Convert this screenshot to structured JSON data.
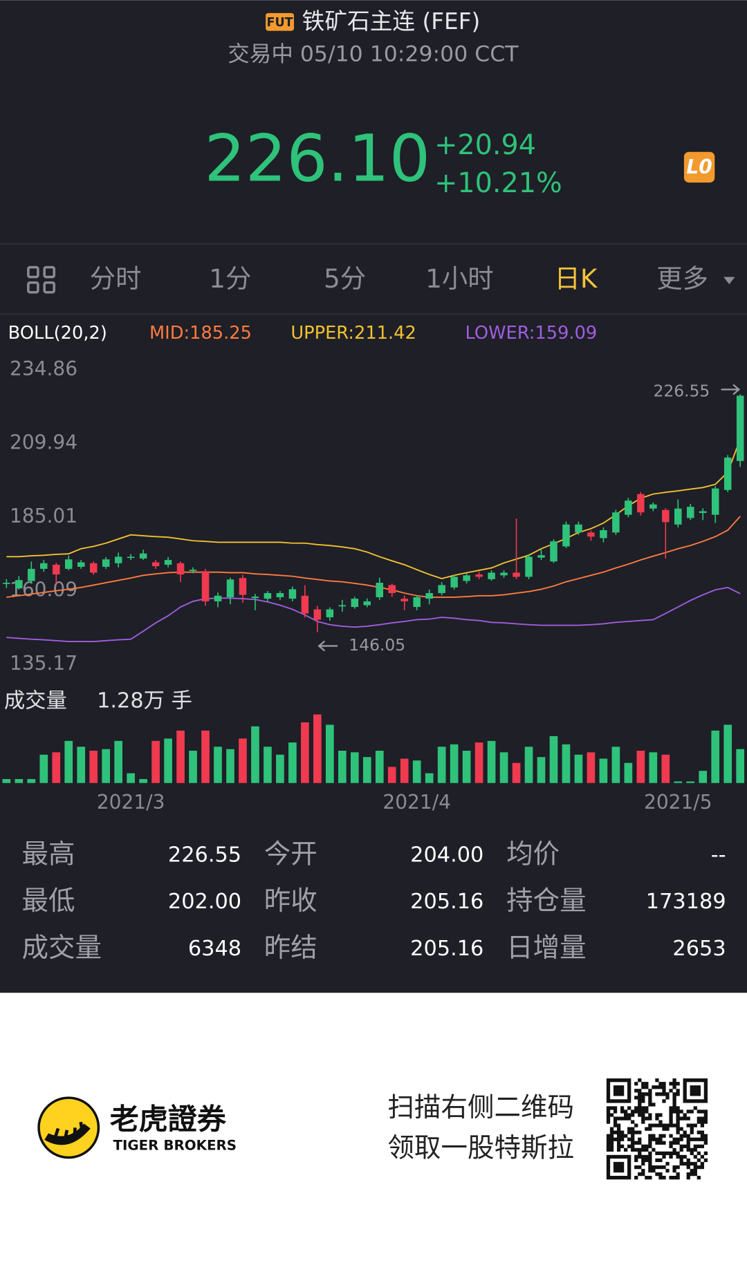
{
  "header": {
    "badge": "FUT",
    "title": "铁矿石主连 (FEF)",
    "status": "交易中 05/10 10:29:00 CCT",
    "price": "226.10",
    "change": "+20.94",
    "change_pct": "+10.21%",
    "level_badge": "L0"
  },
  "tabs": [
    {
      "label": "分时"
    },
    {
      "label": "1分"
    },
    {
      "label": "5分"
    },
    {
      "label": "1小时"
    },
    {
      "label": "日K",
      "active": true
    },
    {
      "label": "更多"
    }
  ],
  "chart_data": {
    "type": "candlestick",
    "indicator": "BOLL(20,2)",
    "up_color": "#2fc27a",
    "down_color": "#ef3a4f",
    "grid": false,
    "ylim": [
      135.17,
      234.86
    ],
    "yticks": [
      234.86,
      209.94,
      185.01,
      160.09,
      135.17
    ],
    "categories": [
      null,
      null,
      null,
      null,
      null,
      null,
      null,
      null,
      null,
      null,
      "2021/3",
      null,
      null,
      null,
      null,
      null,
      null,
      null,
      null,
      null,
      null,
      null,
      null,
      null,
      null,
      null,
      null,
      null,
      null,
      null,
      null,
      null,
      null,
      "2021/4",
      null,
      null,
      null,
      null,
      null,
      null,
      null,
      null,
      null,
      null,
      null,
      null,
      null,
      null,
      null,
      null,
      null,
      null,
      null,
      null,
      "2021/5",
      null,
      null,
      null,
      null,
      null
    ],
    "open": [
      162.5,
      160.9,
      163.4,
      167.5,
      168.9,
      167.5,
      168.2,
      169.4,
      168.2,
      169.4,
      171.3,
      171.0,
      169.7,
      168.9,
      169.4,
      167.0,
      166.7,
      156.5,
      157.9,
      164.4,
      157.6,
      157.4,
      157.9,
      157.4,
      158.4,
      153.8,
      151.1,
      154.8,
      154.6,
      155.2,
      157.9,
      162.0,
      157.4,
      154.6,
      157.4,
      159.3,
      161.2,
      163.4,
      165.6,
      164.0,
      165.3,
      166.2,
      164.8,
      171.3,
      170.0,
      175.1,
      179.8,
      179.8,
      177.9,
      179.8,
      185.8,
      192.8,
      187.9,
      187.4,
      182.5,
      184.7,
      186.4,
      185.8,
      194.2,
      204
    ],
    "high": [
      164,
      165,
      170,
      170.5,
      169.5,
      172,
      170.5,
      170,
      171.5,
      173,
      172.5,
      174,
      170.5,
      171.5,
      170,
      168,
      167.5,
      159.5,
      164.5,
      165.5,
      159,
      160,
      160,
      161.5,
      162,
      155,
      154.5,
      157,
      158,
      157.5,
      164.5,
      162.5,
      158.5,
      158.5,
      160.5,
      163,
      165.5,
      166,
      166.5,
      167,
      167,
      184.5,
      172.5,
      174,
      177.5,
      183.5,
      183.5,
      180.5,
      181.5,
      187.5,
      191.5,
      193.5,
      190,
      188,
      191,
      189.5,
      188,
      195.5,
      206,
      226.55
    ],
    "low": [
      161,
      160.5,
      162.5,
      166.5,
      162.5,
      167,
      167.5,
      165.5,
      167.5,
      168,
      170.5,
      170.5,
      167.5,
      168,
      163,
      166,
      155,
      154.5,
      155.5,
      156,
      153.5,
      156.5,
      157,
      156.5,
      151,
      146.05,
      150,
      153,
      154,
      154.5,
      157,
      158,
      153.5,
      153.5,
      155.5,
      158.5,
      160.5,
      162.5,
      164,
      163.5,
      164.5,
      164,
      164,
      170.5,
      169.5,
      174.5,
      179,
      177,
      176.5,
      179,
      185,
      185.5,
      187,
      171,
      181.5,
      184,
      184,
      183,
      193.5,
      202
    ],
    "close": [
      162.8,
      163.7,
      167.5,
      169.4,
      165.6,
      170.7,
      169.7,
      166.2,
      170.7,
      171.6,
      171.6,
      172.7,
      168.4,
      170.5,
      165.6,
      167.2,
      156.5,
      158.4,
      163.9,
      158.7,
      158.1,
      159.3,
      159.3,
      160.6,
      152.4,
      150.3,
      153.8,
      155.2,
      157.4,
      156.5,
      162.8,
      159.3,
      156.5,
      157.9,
      159.3,
      162.0,
      164.8,
      165.3,
      164.8,
      166.2,
      166.2,
      164.8,
      171.6,
      172.1,
      176.8,
      182.5,
      182.5,
      178.4,
      180.6,
      186.6,
      190.6,
      186.6,
      189.3,
      183.3,
      187.9,
      188.5,
      187.0,
      194.7,
      205.16,
      226.1
    ],
    "series": [
      {
        "name": "MID:185.25",
        "color": "#ff7b3f",
        "values": [
          157.9,
          158.4,
          159.0,
          159.5,
          160.1,
          160.6,
          161.2,
          162.0,
          162.8,
          163.6,
          164.4,
          165.3,
          165.8,
          166.2,
          166.4,
          166.4,
          166.4,
          166.4,
          166.2,
          166.2,
          165.8,
          165.6,
          165.3,
          165.0,
          164.4,
          163.9,
          163.4,
          163.1,
          162.6,
          162.0,
          161.2,
          160.4,
          159.3,
          158.4,
          157.9,
          157.9,
          157.9,
          158.1,
          158.4,
          158.4,
          158.7,
          159.3,
          159.8,
          160.6,
          161.7,
          163.1,
          164.2,
          165.3,
          166.4,
          167.8,
          169.1,
          170.5,
          171.8,
          173.0,
          174.3,
          175.4,
          176.8,
          178.4,
          180.6,
          185.25
        ]
      },
      {
        "name": "UPPER:211.42",
        "color": "#f2c230",
        "values": [
          171.6,
          171.6,
          171.9,
          172.1,
          172.4,
          172.6,
          174.3,
          175.1,
          176.2,
          177.6,
          179.0,
          178.7,
          178.4,
          178.2,
          177.6,
          177.0,
          176.8,
          176.5,
          176.5,
          176.5,
          176.5,
          176.5,
          176.5,
          176.2,
          176.2,
          175.7,
          175.4,
          174.9,
          174.3,
          173.2,
          171.6,
          170.2,
          168.9,
          167.2,
          165.6,
          164.2,
          165.3,
          166.2,
          167.0,
          167.8,
          169.5,
          170.8,
          172.1,
          174.3,
          176.0,
          177.8,
          179.8,
          181.1,
          183.0,
          185.8,
          188.8,
          191.4,
          192.8,
          193.4,
          193.9,
          194.5,
          195.0,
          196.1,
          200.2,
          211.42
        ]
      },
      {
        "name": "LOWER:159.09",
        "color": "#a05ee0",
        "values": [
          144.3,
          144.0,
          143.7,
          143.5,
          143.2,
          142.9,
          142.9,
          142.9,
          143.2,
          143.5,
          143.7,
          146.4,
          149.2,
          151.6,
          154.6,
          156.5,
          157.4,
          157.6,
          157.6,
          157.4,
          157.1,
          156.3,
          155.2,
          153.8,
          151.9,
          149.7,
          148.6,
          148.1,
          147.8,
          148.1,
          148.6,
          149.2,
          149.7,
          150.3,
          150.5,
          151.1,
          150.8,
          150.3,
          150.0,
          149.4,
          149.2,
          148.9,
          148.6,
          148.4,
          148.4,
          148.4,
          148.4,
          148.6,
          148.9,
          149.4,
          149.7,
          150.0,
          150.3,
          152.4,
          154.6,
          156.8,
          158.7,
          160.4,
          161.2,
          159.09
        ]
      }
    ],
    "high_marker": 226.55,
    "low_marker": 146.05,
    "volume": {
      "label": "成交量",
      "value_label": "1.28万 手",
      "values": [
        1500,
        1500,
        1500,
        10700,
        11600,
        15900,
        13700,
        12200,
        12800,
        15900,
        3700,
        1500,
        15900,
        16800,
        19800,
        12200,
        19800,
        13700,
        12800,
        16800,
        21400,
        13700,
        10700,
        15300,
        22900,
        25900,
        22000,
        12200,
        11600,
        9800,
        12200,
        6100,
        9200,
        8500,
        3700,
        13700,
        14600,
        12200,
        15300,
        15900,
        11600,
        7600,
        13700,
        9800,
        17700,
        14600,
        10700,
        11600,
        9200,
        13700,
        7600,
        12200,
        11600,
        10700,
        600,
        600,
        4600,
        19800,
        22000,
        12800
      ]
    }
  },
  "stats": [
    [
      "最高",
      "226.55",
      "今开",
      "204.00",
      "均价",
      "--"
    ],
    [
      "最低",
      "202.00",
      "昨收",
      "205.16",
      "持仓量",
      "173189"
    ],
    [
      "成交量",
      "6348",
      "昨结",
      "205.16",
      "日增量",
      "2653"
    ]
  ],
  "footer": {
    "brand_cn": "老虎證券",
    "brand_en": "TIGER BROKERS",
    "promo": [
      "扫描右侧二维码",
      "领取一股特斯拉"
    ]
  }
}
